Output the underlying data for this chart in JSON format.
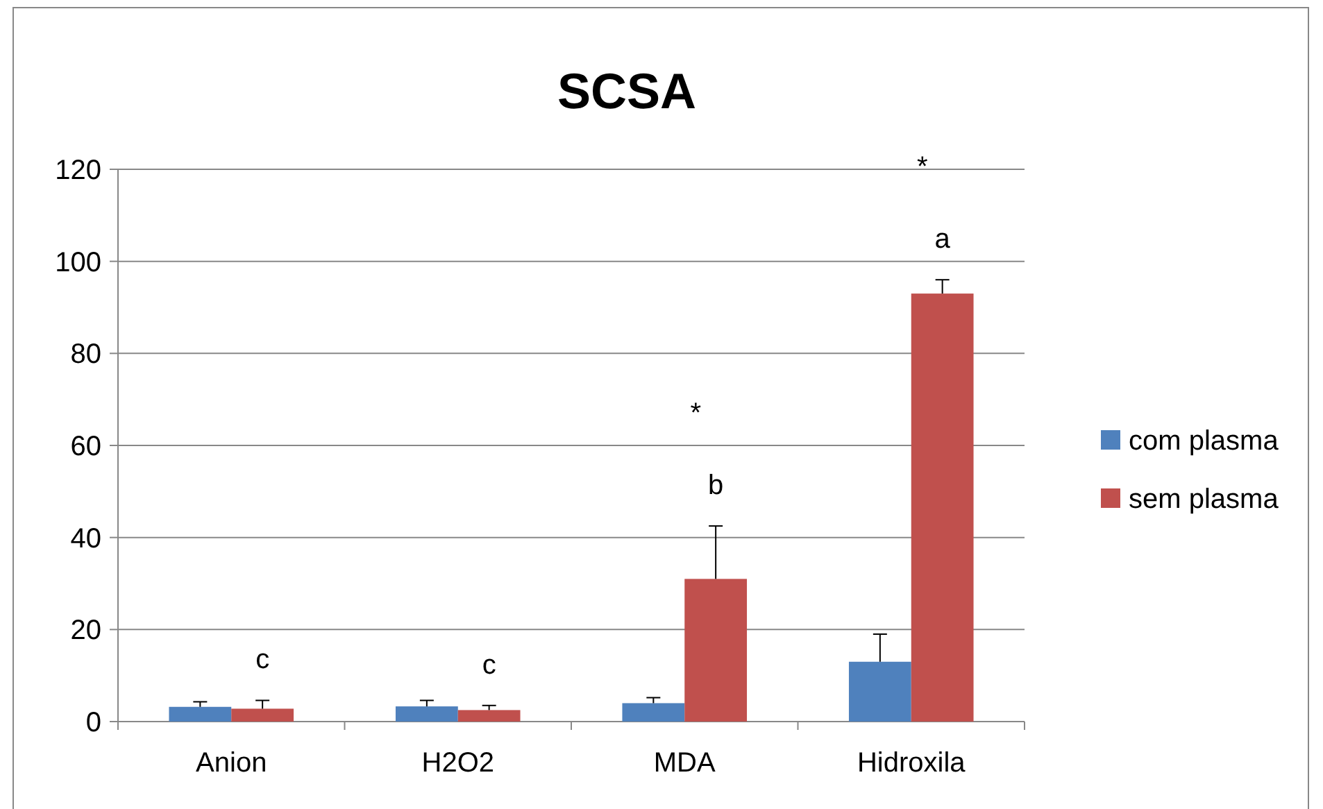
{
  "chart_data": {
    "type": "bar",
    "title": "SCSA",
    "categories": [
      "Anion",
      "H2O2",
      "MDA",
      "Hidroxila"
    ],
    "series": [
      {
        "name": "com plasma",
        "color": "#4f81bd",
        "values": [
          3.2,
          3.3,
          4,
          13
        ],
        "errors": [
          [
            3.2,
            4.3
          ],
          [
            3.3,
            4.6
          ],
          [
            4,
            5.2
          ],
          [
            13,
            19
          ]
        ]
      },
      {
        "name": "sem plasma",
        "color": "#c0504d",
        "values": [
          2.8,
          2.5,
          31,
          93
        ],
        "errors": [
          [
            2.8,
            4.6
          ],
          [
            2.5,
            3.5
          ],
          [
            31,
            42.5
          ],
          [
            93,
            96
          ]
        ]
      }
    ],
    "ylim": [
      0,
      120
    ],
    "yticks": [
      0,
      20,
      40,
      60,
      80,
      100,
      120
    ],
    "grid": "y",
    "legend": "right",
    "annotations": [
      "c",
      "c",
      "b",
      "a",
      "*",
      "*"
    ]
  }
}
